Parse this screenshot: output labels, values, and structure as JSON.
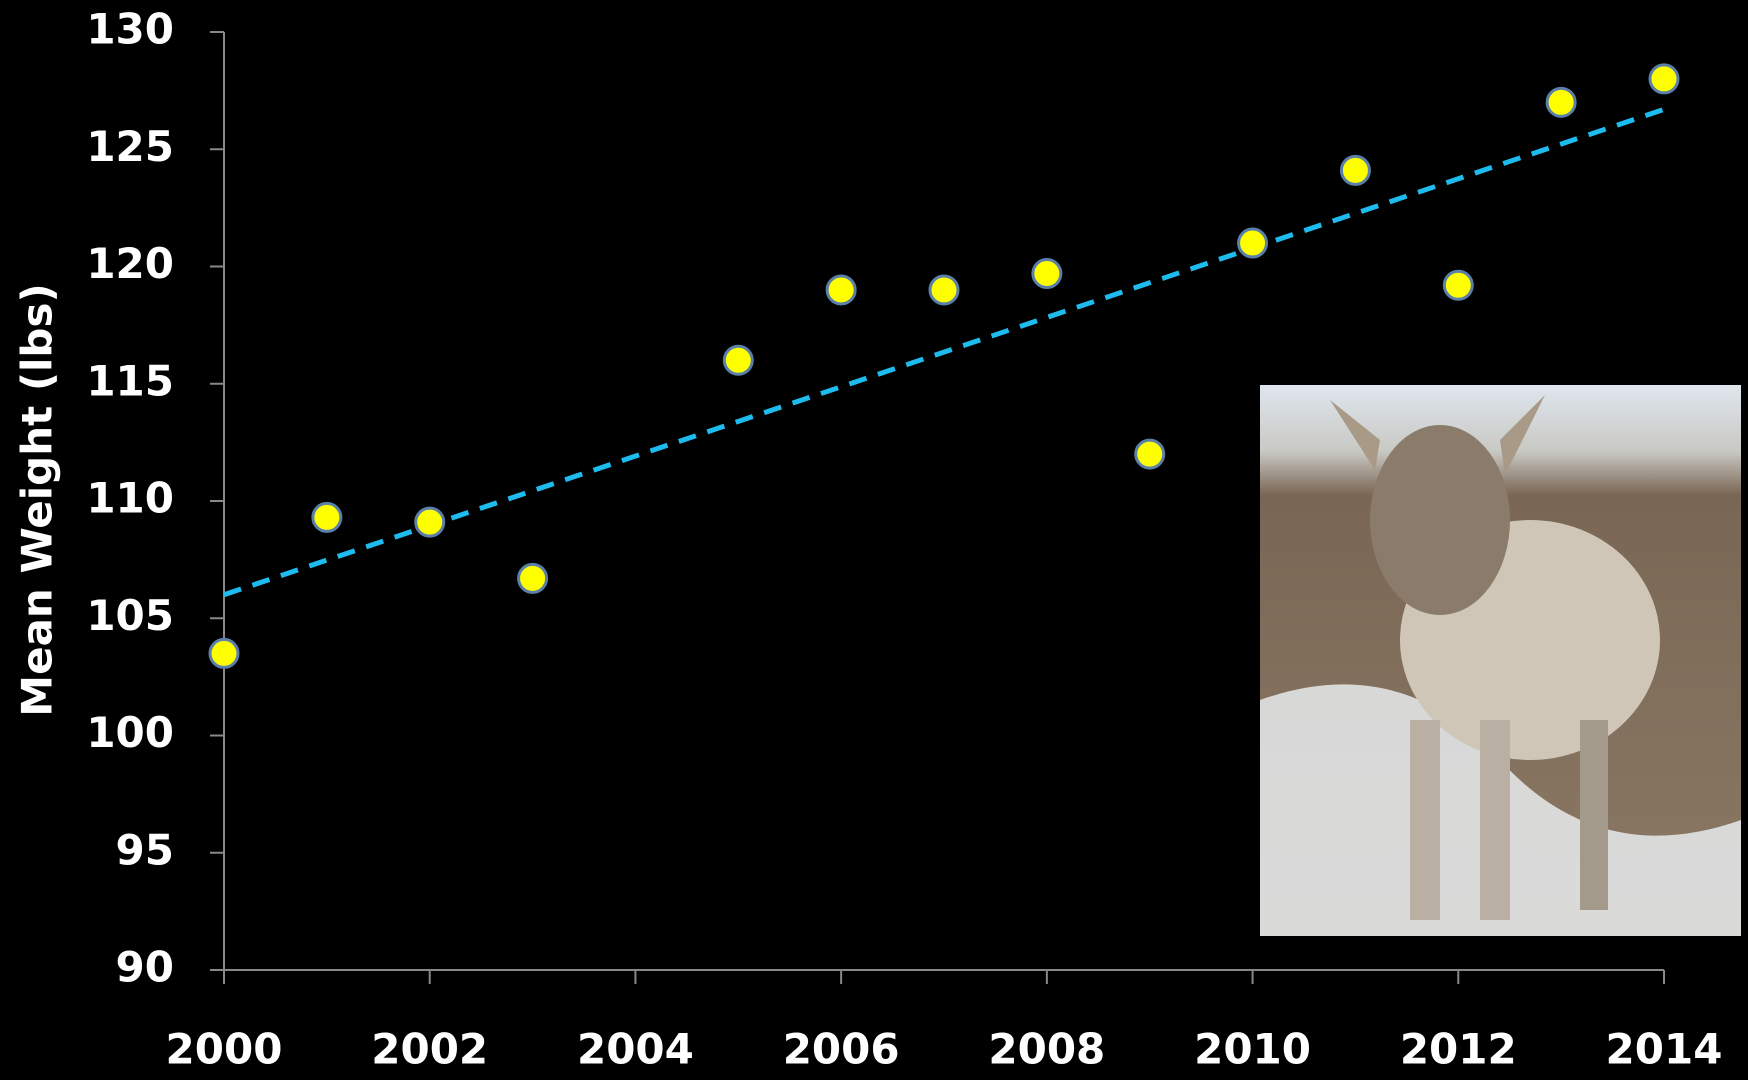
{
  "chart_data": {
    "type": "scatter",
    "y_label": "Mean Weight (lbs)",
    "x": [
      2000,
      2001,
      2002,
      2003,
      2005,
      2006,
      2007,
      2008,
      2009,
      2010,
      2011,
      2012,
      2013,
      2014
    ],
    "values": [
      103.5,
      109.3,
      109.1,
      106.7,
      116,
      119,
      119,
      119.7,
      112,
      121,
      124.1,
      119.2,
      127,
      128
    ],
    "color": "#ffff00",
    "trendline": {
      "x": [
        2000,
        2014
      ],
      "values": [
        106,
        126.7
      ],
      "color": "#1ebbee"
    },
    "xlim": [
      2000,
      2014
    ],
    "xticks": [
      2000,
      2002,
      2004,
      2006,
      2008,
      2010,
      2012,
      2014
    ],
    "ylim": [
      90,
      130
    ],
    "yticks": [
      90,
      95,
      100,
      105,
      110,
      115,
      120,
      125,
      130
    ],
    "grid": false
  }
}
